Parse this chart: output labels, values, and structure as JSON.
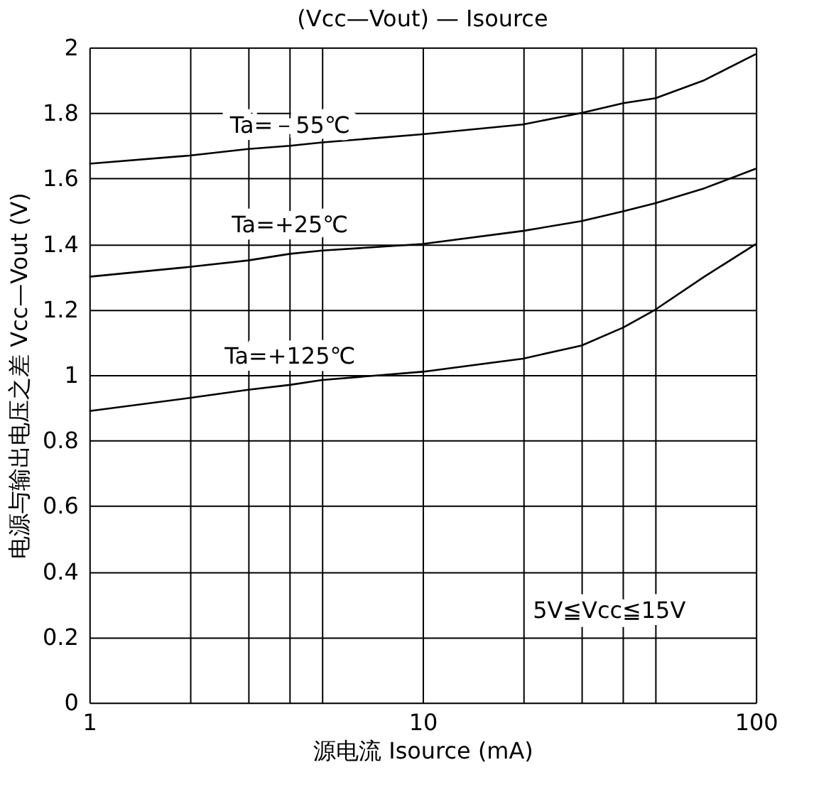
{
  "chart_data": {
    "type": "line",
    "title": "(Vcc—Vout) — Isource",
    "xlabel": "源电流 Isource (mA)",
    "ylabel": "电源与输出电压之差 Vcc—Vout (V)",
    "x": [
      1,
      2,
      3,
      4,
      5,
      10,
      20,
      30,
      40,
      50,
      70,
      100
    ],
    "series": [
      {
        "name": "Ta=－55℃",
        "color": "#000000",
        "values": [
          1.645,
          1.67,
          1.69,
          1.7,
          1.71,
          1.735,
          1.765,
          1.8,
          1.83,
          1.845,
          1.9,
          1.98
        ]
      },
      {
        "name": "Ta=+25℃",
        "color": "#000000",
        "values": [
          1.3,
          1.33,
          1.35,
          1.37,
          1.38,
          1.4,
          1.44,
          1.47,
          1.5,
          1.525,
          1.57,
          1.63
        ]
      },
      {
        "name": "Ta=+125℃",
        "color": "#000000",
        "values": [
          0.89,
          0.93,
          0.955,
          0.97,
          0.985,
          1.01,
          1.05,
          1.09,
          1.145,
          1.2,
          1.3,
          1.4
        ]
      }
    ],
    "log": "x",
    "xlim": [
      1,
      100
    ],
    "ylim": [
      0,
      2
    ],
    "xticks": [
      1,
      {
        "value": 2,
        "label": null
      },
      {
        "value": 3,
        "label": null
      },
      {
        "value": 4,
        "label": null
      },
      {
        "value": 5,
        "label": null
      },
      10,
      {
        "value": 20,
        "label": null
      },
      {
        "value": 30,
        "label": null
      },
      {
        "value": 40,
        "label": null
      },
      {
        "value": 50,
        "label": null
      },
      100
    ],
    "yticks": [
      0,
      0.2,
      0.4,
      0.6,
      0.8,
      1,
      1.2,
      1.4,
      1.6,
      1.8,
      2
    ],
    "grid": true,
    "legend": false,
    "marker": "none",
    "line_style": "solid",
    "annotations": [
      "5V≦Vcc≦15V"
    ]
  }
}
